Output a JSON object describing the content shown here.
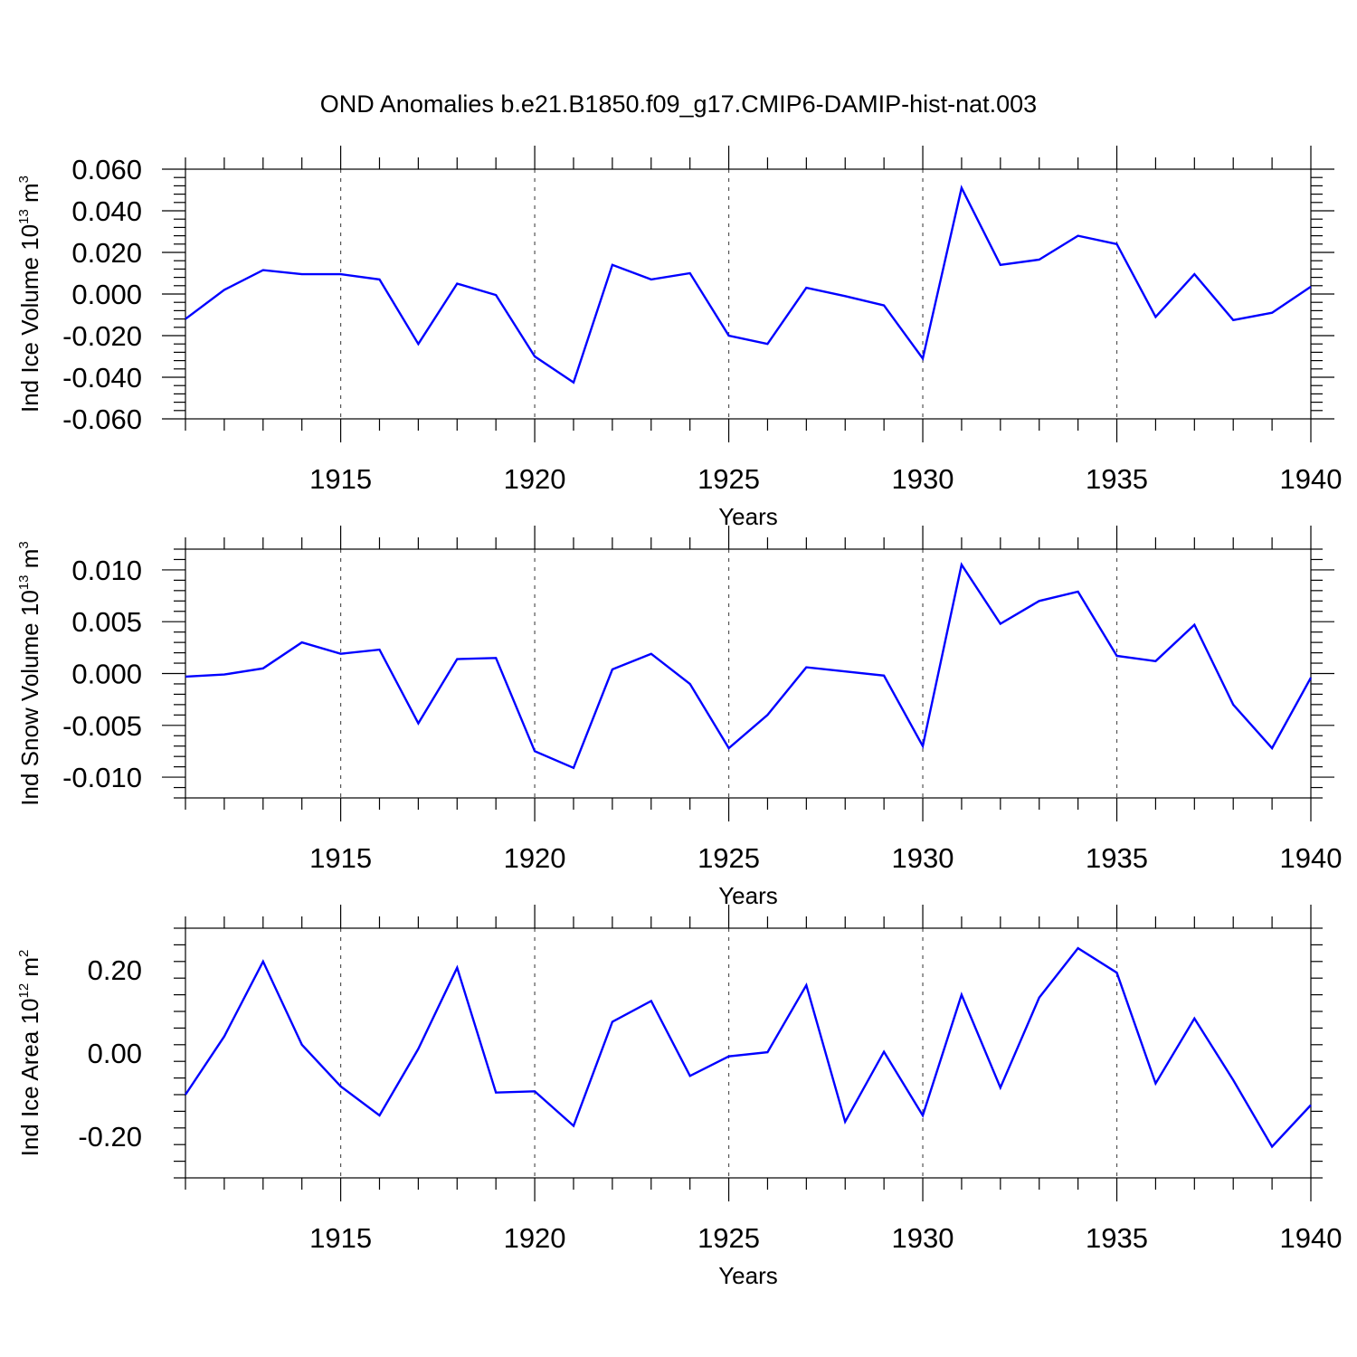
{
  "title": "OND Anomalies b.e21.B1850.f09_g17.CMIP6-DAMIP-hist-nat.003",
  "chart_data": [
    {
      "type": "line",
      "ylabel": {
        "base": "Ind Ice Volume 10",
        "exp": "13",
        "unit": " m",
        "unit_exp": "3"
      },
      "xlabel": "Years",
      "xlim": [
        1911,
        1940
      ],
      "ylim": [
        -0.06,
        0.06
      ],
      "xticks": [
        1915,
        1920,
        1925,
        1930,
        1935,
        1940
      ],
      "yticks": [
        -0.06,
        -0.04,
        -0.02,
        0.0,
        0.02,
        0.04,
        0.06
      ],
      "ytick_labels": [
        "-0.060",
        "-0.040",
        "-0.020",
        "0.000",
        "0.020",
        "0.040",
        "0.060"
      ],
      "grid": "x-major-dashed",
      "color": "#0000ff",
      "x": [
        1911,
        1912,
        1913,
        1914,
        1915,
        1916,
        1917,
        1918,
        1919,
        1920,
        1921,
        1922,
        1923,
        1924,
        1925,
        1926,
        1927,
        1928,
        1929,
        1930,
        1931,
        1932,
        1933,
        1934,
        1935,
        1936,
        1937,
        1938,
        1939,
        1940
      ],
      "values": [
        -0.012,
        0.002,
        0.0115,
        0.0095,
        0.0095,
        0.007,
        -0.024,
        0.005,
        -0.0005,
        -0.03,
        -0.0425,
        0.014,
        0.007,
        0.01,
        -0.02,
        -0.024,
        0.003,
        -0.001,
        -0.0055,
        -0.031,
        0.051,
        0.014,
        0.0165,
        0.028,
        0.024,
        -0.011,
        0.0095,
        -0.0125,
        -0.009,
        0.0035
      ]
    },
    {
      "type": "line",
      "ylabel": {
        "base": "Ind Snow Volume 10",
        "exp": "13",
        "unit": " m",
        "unit_exp": "3"
      },
      "xlabel": "Years",
      "xlim": [
        1911,
        1940
      ],
      "ylim": [
        -0.012,
        0.012
      ],
      "xticks": [
        1915,
        1920,
        1925,
        1930,
        1935,
        1940
      ],
      "yticks": [
        -0.01,
        -0.005,
        0.0,
        0.005,
        0.01
      ],
      "ytick_labels": [
        "-0.010",
        "-0.005",
        "0.000",
        "0.005",
        "0.010"
      ],
      "grid": "x-major-dashed",
      "color": "#0000ff",
      "x": [
        1911,
        1912,
        1913,
        1914,
        1915,
        1916,
        1917,
        1918,
        1919,
        1920,
        1921,
        1922,
        1923,
        1924,
        1925,
        1926,
        1927,
        1928,
        1929,
        1930,
        1931,
        1932,
        1933,
        1934,
        1935,
        1936,
        1937,
        1938,
        1939,
        1940
      ],
      "values": [
        -0.0003,
        -0.0001,
        0.0005,
        0.003,
        0.0019,
        0.0023,
        -0.0048,
        0.0014,
        0.0015,
        -0.0075,
        -0.0091,
        0.0004,
        0.0019,
        -0.001,
        -0.0072,
        -0.004,
        0.0006,
        0.0002,
        -0.0002,
        -0.007,
        0.0105,
        0.0048,
        0.007,
        0.0079,
        0.0017,
        0.0012,
        0.0047,
        -0.003,
        -0.0072,
        -0.0004
      ]
    },
    {
      "type": "line",
      "ylabel": {
        "base": "Ind Ice Area 10",
        "exp": "12",
        "unit": " m",
        "unit_exp": "2"
      },
      "xlabel": "Years",
      "xlim": [
        1911,
        1940
      ],
      "ylim": [
        -0.3,
        0.3
      ],
      "xticks": [
        1915,
        1920,
        1925,
        1930,
        1935,
        1940
      ],
      "yticks": [
        -0.2,
        0.0,
        0.2
      ],
      "ytick_labels": [
        "-0.20",
        "0.00",
        "0.20"
      ],
      "grid": "x-major-dashed",
      "color": "#0000ff",
      "x": [
        1911,
        1912,
        1913,
        1914,
        1915,
        1916,
        1917,
        1918,
        1919,
        1920,
        1921,
        1922,
        1923,
        1924,
        1925,
        1926,
        1927,
        1928,
        1929,
        1930,
        1931,
        1932,
        1933,
        1934,
        1935,
        1936,
        1937,
        1938,
        1939,
        1940
      ],
      "values": [
        -0.1,
        0.04,
        0.22,
        0.02,
        -0.08,
        -0.15,
        0.01,
        0.205,
        -0.095,
        -0.092,
        -0.175,
        0.075,
        0.125,
        -0.055,
        -0.008,
        0.002,
        0.163,
        -0.165,
        0.003,
        -0.15,
        0.14,
        -0.083,
        0.133,
        0.252,
        0.193,
        -0.073,
        0.083,
        -0.065,
        -0.225,
        -0.125
      ]
    }
  ]
}
